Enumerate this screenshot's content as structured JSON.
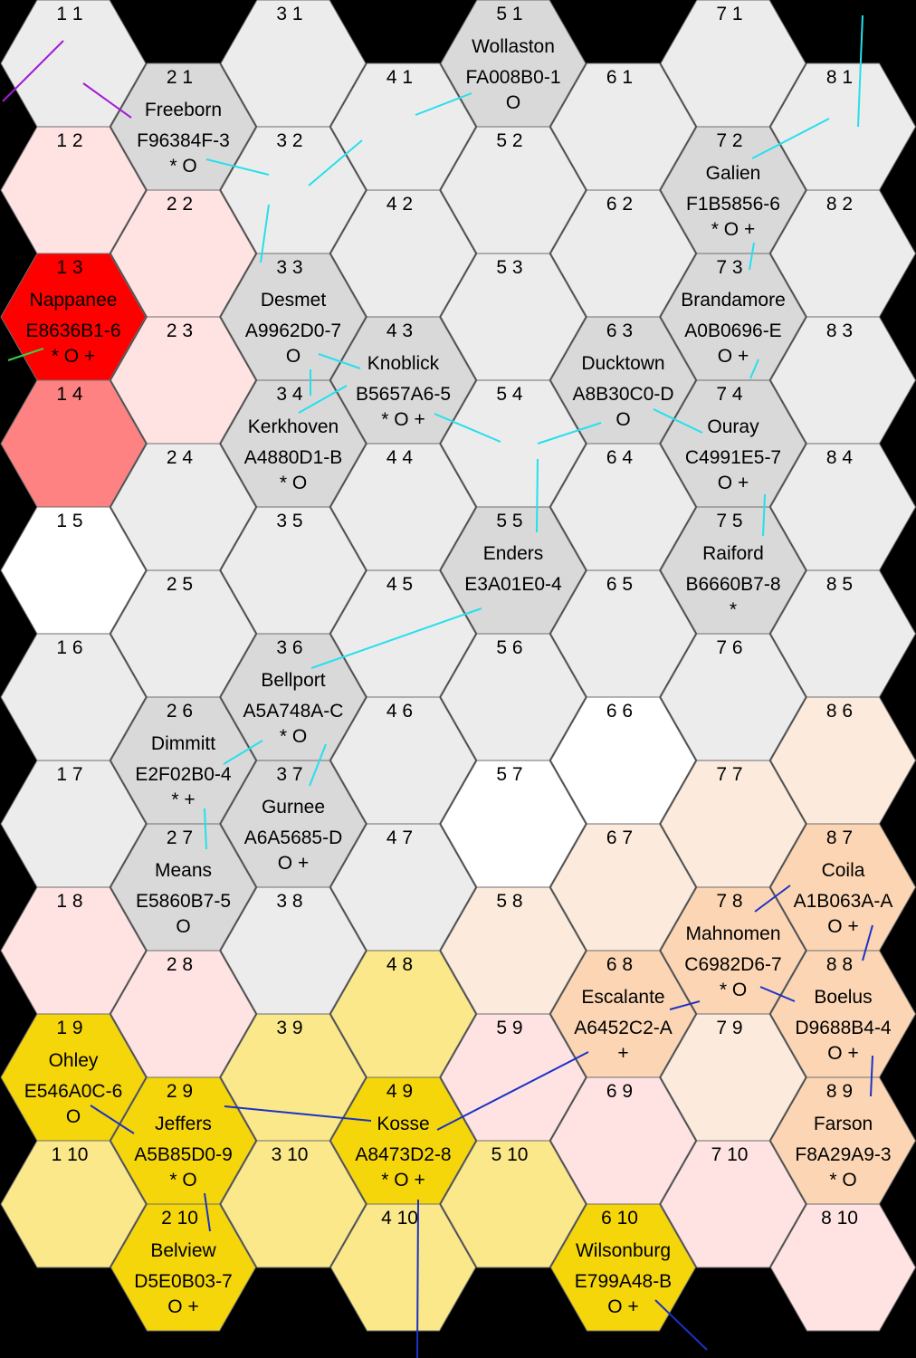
{
  "colors": {
    "empty": "#ececec",
    "white": "#ffffff",
    "light_pink": "#ffe3e3",
    "light_peach": "#fcebdc",
    "peach": "#fcd6b4",
    "light_yellow": "#fbe88a",
    "yellow": "#f5d60b",
    "red": "#ff0000",
    "salmon": "#ff8282",
    "system_gray": "#d9d9d9",
    "route_cyan": "#25e0ec",
    "route_blue": "#1b32c6",
    "route_purple": "#a31bd6",
    "route_green": "#3cd048"
  },
  "hexes": [
    {
      "id": "1 1",
      "fill": "empty"
    },
    {
      "id": "1 2",
      "fill": "light_pink"
    },
    {
      "id": "1 3",
      "fill": "red",
      "name": "Nappanee",
      "upp": "E8636B1-6",
      "bases": "* O +"
    },
    {
      "id": "1 4",
      "fill": "salmon"
    },
    {
      "id": "1 5",
      "fill": "white"
    },
    {
      "id": "1 6",
      "fill": "empty"
    },
    {
      "id": "1 7",
      "fill": "empty"
    },
    {
      "id": "1 8",
      "fill": "light_pink"
    },
    {
      "id": "1 9",
      "fill": "yellow",
      "name": "Ohley",
      "upp": "E546A0C-6",
      "bases": "O"
    },
    {
      "id": "1 10",
      "fill": "light_yellow"
    },
    {
      "id": "2 1",
      "fill": "system_gray",
      "name": "Freeborn",
      "upp": "F96384F-3",
      "bases": "* O"
    },
    {
      "id": "2 2",
      "fill": "light_pink"
    },
    {
      "id": "2 3",
      "fill": "light_pink"
    },
    {
      "id": "2 4",
      "fill": "empty"
    },
    {
      "id": "2 5",
      "fill": "empty"
    },
    {
      "id": "2 6",
      "fill": "system_gray",
      "name": "Dimmitt",
      "upp": "E2F02B0-4",
      "bases": "*    +"
    },
    {
      "id": "2 7",
      "fill": "system_gray",
      "name": "Means",
      "upp": "E5860B7-5",
      "bases": "O"
    },
    {
      "id": "2 8",
      "fill": "light_pink"
    },
    {
      "id": "2 9",
      "fill": "yellow",
      "name": "Jeffers",
      "upp": "A5B85D0-9",
      "bases": "* O"
    },
    {
      "id": "2 10",
      "fill": "yellow",
      "name": "Belview",
      "upp": "D5E0B03-7",
      "bases": "O +"
    },
    {
      "id": "3 1",
      "fill": "empty"
    },
    {
      "id": "3 2",
      "fill": "empty"
    },
    {
      "id": "3 3",
      "fill": "system_gray",
      "name": "Desmet",
      "upp": "A9962D0-7",
      "bases": "O"
    },
    {
      "id": "3 4",
      "fill": "system_gray",
      "name": "Kerkhoven",
      "upp": "A4880D1-B",
      "bases": "* O"
    },
    {
      "id": "3 5",
      "fill": "empty"
    },
    {
      "id": "3 6",
      "fill": "system_gray",
      "name": "Bellport",
      "upp": "A5A748A-C",
      "bases": "* O"
    },
    {
      "id": "3 7",
      "fill": "system_gray",
      "name": "Gurnee",
      "upp": "A6A5685-D",
      "bases": "O +"
    },
    {
      "id": "3 8",
      "fill": "empty"
    },
    {
      "id": "3 9",
      "fill": "light_yellow"
    },
    {
      "id": "3 10",
      "fill": "light_yellow"
    },
    {
      "id": "4 1",
      "fill": "empty"
    },
    {
      "id": "4 2",
      "fill": "empty"
    },
    {
      "id": "4 3",
      "fill": "system_gray",
      "name": "Knoblick",
      "upp": "B5657A6-5",
      "bases": "* O +"
    },
    {
      "id": "4 4",
      "fill": "empty"
    },
    {
      "id": "4 5",
      "fill": "empty"
    },
    {
      "id": "4 6",
      "fill": "empty"
    },
    {
      "id": "4 7",
      "fill": "empty"
    },
    {
      "id": "4 8",
      "fill": "light_yellow"
    },
    {
      "id": "4 9",
      "fill": "yellow",
      "name": "Kosse",
      "upp": "A8473D2-8",
      "bases": "* O +"
    },
    {
      "id": "4 10",
      "fill": "light_yellow"
    },
    {
      "id": "5 1",
      "fill": "system_gray",
      "name": "Wollaston",
      "upp": "FA008B0-1",
      "bases": "O"
    },
    {
      "id": "5 2",
      "fill": "empty"
    },
    {
      "id": "5 3",
      "fill": "empty"
    },
    {
      "id": "5 4",
      "fill": "empty"
    },
    {
      "id": "5 5",
      "fill": "system_gray",
      "name": "Enders",
      "upp": "E3A01E0-4",
      "bases": ""
    },
    {
      "id": "5 6",
      "fill": "empty"
    },
    {
      "id": "5 7",
      "fill": "white"
    },
    {
      "id": "5 8",
      "fill": "light_peach"
    },
    {
      "id": "5 9",
      "fill": "light_pink"
    },
    {
      "id": "5 10",
      "fill": "light_yellow"
    },
    {
      "id": "6 1",
      "fill": "empty"
    },
    {
      "id": "6 2",
      "fill": "empty"
    },
    {
      "id": "6 3",
      "fill": "system_gray",
      "name": "Ducktown",
      "upp": "A8B30C0-D",
      "bases": "O"
    },
    {
      "id": "6 4",
      "fill": "empty"
    },
    {
      "id": "6 5",
      "fill": "empty"
    },
    {
      "id": "6 6",
      "fill": "white"
    },
    {
      "id": "6 7",
      "fill": "light_peach"
    },
    {
      "id": "6 8",
      "fill": "peach",
      "name": "Escalante",
      "upp": "A6452C2-A",
      "bases": "+"
    },
    {
      "id": "6 9",
      "fill": "light_pink"
    },
    {
      "id": "6 10",
      "fill": "yellow",
      "name": "Wilsonburg",
      "upp": "E799A48-B",
      "bases": "O +"
    },
    {
      "id": "7 1",
      "fill": "empty"
    },
    {
      "id": "7 2",
      "fill": "system_gray",
      "name": "Galien",
      "upp": "F1B5856-6",
      "bases": "* O +"
    },
    {
      "id": "7 3",
      "fill": "system_gray",
      "name": "Brandamore",
      "upp": "A0B0696-E",
      "bases": "O +"
    },
    {
      "id": "7 4",
      "fill": "system_gray",
      "name": "Ouray",
      "upp": "C4991E5-7",
      "bases": "O +"
    },
    {
      "id": "7 5",
      "fill": "system_gray",
      "name": "Raiford",
      "upp": "B6660B7-8",
      "bases": "*"
    },
    {
      "id": "7 6",
      "fill": "empty"
    },
    {
      "id": "7 7",
      "fill": "light_peach"
    },
    {
      "id": "7 8",
      "fill": "peach",
      "name": "Mahnomen",
      "upp": "C6982D6-7",
      "bases": "* O"
    },
    {
      "id": "7 9",
      "fill": "light_peach"
    },
    {
      "id": "7 10",
      "fill": "light_pink"
    },
    {
      "id": "8 1",
      "fill": "empty"
    },
    {
      "id": "8 2",
      "fill": "empty"
    },
    {
      "id": "8 3",
      "fill": "empty"
    },
    {
      "id": "8 4",
      "fill": "empty"
    },
    {
      "id": "8 5",
      "fill": "empty"
    },
    {
      "id": "8 6",
      "fill": "light_peach"
    },
    {
      "id": "8 7",
      "fill": "peach",
      "name": "Coila",
      "upp": "A1B063A-A",
      "bases": "O +"
    },
    {
      "id": "8 8",
      "fill": "peach",
      "name": "Boelus",
      "upp": "D9688B4-4",
      "bases": "O +"
    },
    {
      "id": "8 9",
      "fill": "peach",
      "name": "Farson",
      "upp": "F8A29A9-3",
      "bases": "* O"
    },
    {
      "id": "8 10",
      "fill": "light_pink"
    }
  ]
}
